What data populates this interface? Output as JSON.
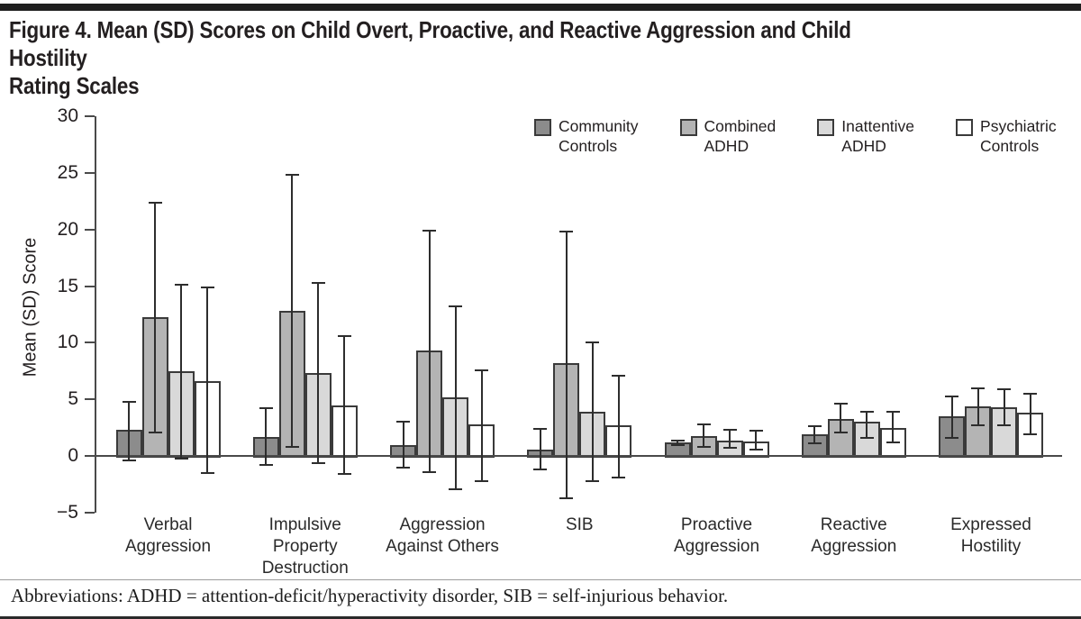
{
  "figure": {
    "title": "Figure 4. Mean (SD) Scores on Child Overt, Proactive, and Reactive Aggression and Child Hostility\nRating Scales",
    "footnote": "Abbreviations: ADHD = attention-deficit/hyperactivity disorder, SIB = self-injurious behavior."
  },
  "chart_data": {
    "type": "bar",
    "title": "Figure 4. Mean (SD) Scores on Child Overt, Proactive, and Reactive Aggression and Child Hostility Rating Scales",
    "xlabel": "",
    "ylabel": "Mean (SD) Score",
    "ylim": [
      -5,
      30
    ],
    "yticks": [
      -5,
      0,
      5,
      10,
      15,
      20,
      25,
      30
    ],
    "grid": false,
    "legend_position": "top-right inside plot",
    "error_bars": true,
    "categories": [
      "Verbal Aggression",
      "Impulsive Property Destruction",
      "Aggression Against Others",
      "SIB",
      "Proactive Aggression",
      "Reactive Aggression",
      "Expressed Hostility"
    ],
    "category_labels": [
      [
        "Verbal",
        "Aggression"
      ],
      [
        "Impulsive",
        "Property",
        "Destruction"
      ],
      [
        "Aggression",
        "Against Others"
      ],
      [
        "SIB"
      ],
      [
        "Proactive",
        "Aggression"
      ],
      [
        "Reactive",
        "Aggression"
      ],
      [
        "Expressed",
        "Hostility"
      ]
    ],
    "series": [
      {
        "name": "Community Controls",
        "color": "#8c8c8c",
        "values": [
          2.3,
          1.7,
          1.0,
          0.6,
          1.2,
          1.9,
          3.5
        ],
        "err_low": [
          -0.4,
          -0.8,
          -1.0,
          -1.2,
          1.0,
          1.1,
          1.6
        ],
        "err_high": [
          4.8,
          4.2,
          3.0,
          2.4,
          1.4,
          2.6,
          5.3
        ]
      },
      {
        "name": "Combined ADHD",
        "color": "#b4b4b4",
        "values": [
          12.3,
          12.8,
          9.3,
          8.2,
          1.8,
          3.3,
          4.4
        ],
        "err_low": [
          2.1,
          0.8,
          -1.4,
          -3.7,
          0.8,
          2.1,
          2.7
        ],
        "err_high": [
          22.4,
          24.8,
          19.9,
          19.8,
          2.8,
          4.6,
          6.0
        ]
      },
      {
        "name": "Inattentive ADHD",
        "color": "#d9d9d9",
        "values": [
          7.5,
          7.3,
          5.2,
          3.9,
          1.4,
          3.0,
          4.3
        ],
        "err_low": [
          -0.2,
          -0.6,
          -2.9,
          -2.2,
          0.7,
          1.6,
          2.7
        ],
        "err_high": [
          15.1,
          15.3,
          13.2,
          10.0,
          2.3,
          3.9,
          5.9
        ]
      },
      {
        "name": "Psychiatric Controls",
        "color": "#ffffff",
        "values": [
          6.6,
          4.5,
          2.8,
          2.7,
          1.3,
          2.5,
          3.8
        ],
        "err_low": [
          -1.5,
          -1.6,
          -2.2,
          -1.9,
          0.6,
          1.2,
          1.9
        ],
        "err_high": [
          14.9,
          10.6,
          7.6,
          7.1,
          2.2,
          3.9,
          5.5
        ]
      }
    ],
    "legend": [
      {
        "lines": [
          "Community",
          "Controls"
        ]
      },
      {
        "lines": [
          "Combined",
          "ADHD"
        ]
      },
      {
        "lines": [
          "Inattentive",
          "ADHD"
        ]
      },
      {
        "lines": [
          "Psychiatric",
          "Controls"
        ]
      }
    ],
    "colors": {
      "axis": "#4a4a4a",
      "bar_border": "#3a3a3a",
      "error_bar": "#2d2d2d",
      "text": "#231f20"
    }
  }
}
